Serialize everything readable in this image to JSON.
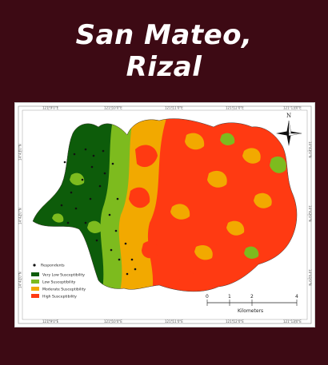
{
  "title": {
    "line1": "San Mateo,",
    "line2": "Rizal"
  },
  "map": {
    "top_ticks": [
      "121°9'0\"E",
      "121°10'0\"E",
      "121°11'0\"E",
      "121°12'0\"E",
      "121°13'0\"E"
    ],
    "bottom_ticks": [
      "121°9'0\"E",
      "121°10'0\"E",
      "121°11'0\"E",
      "121°12'0\"E",
      "121°13'0\"E"
    ],
    "left_ticks": [
      "14°43'0\"N",
      "14°42'0\"N",
      "14°41'0\"N"
    ],
    "right_ticks": [
      "14°43'0\"N",
      "14°42'0\"N",
      "14°41'0\"N"
    ],
    "north_label": "N",
    "legend": {
      "respondents_label": "Respondents",
      "items": [
        {
          "label": "Very Low Susceptibility",
          "color": "#0d5c0a"
        },
        {
          "label": "Low Susceptibility",
          "color": "#7dbb1e"
        },
        {
          "label": "Moderate Susceptibility",
          "color": "#f2a900"
        },
        {
          "label": "High Susceptibility",
          "color": "#ff3a12"
        }
      ]
    },
    "scale_bar": {
      "ticks": [
        "0",
        "1",
        "2",
        "4"
      ],
      "unit": "Kilometers"
    }
  }
}
